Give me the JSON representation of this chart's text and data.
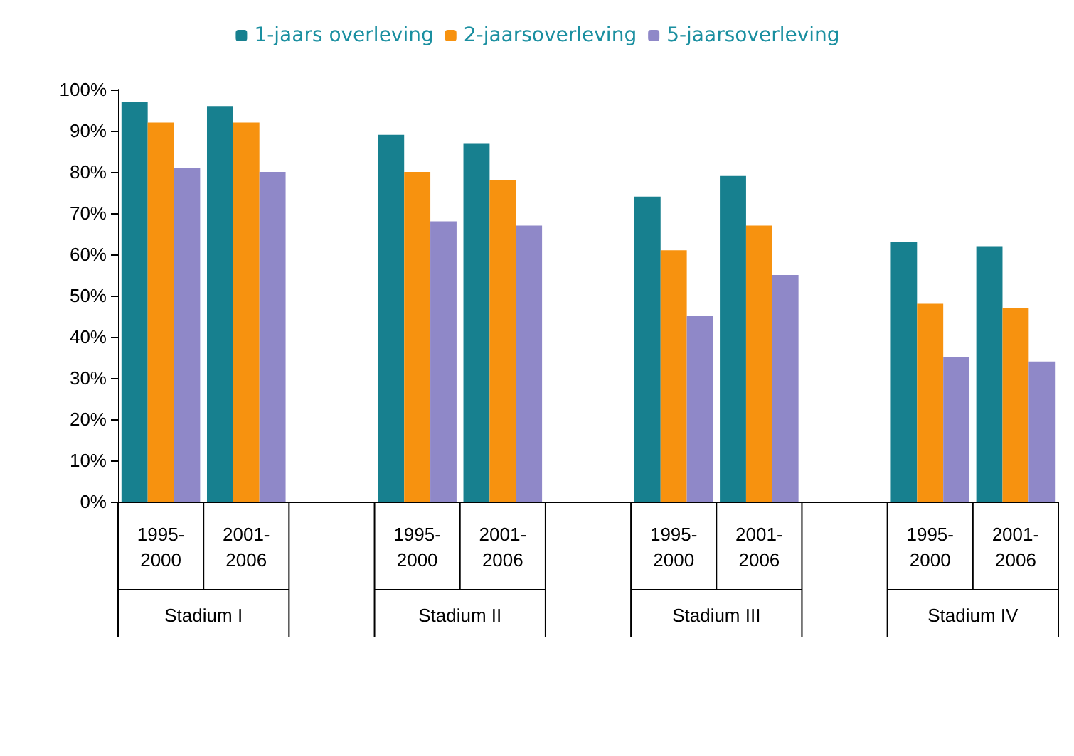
{
  "chart_data": {
    "type": "bar",
    "categories": [
      "1995-2000",
      "2001-2006",
      null,
      "1995-2000",
      "2001-2006",
      null,
      "1995-2000",
      "2001-2006",
      null,
      "1995-2000",
      "2001-2006"
    ],
    "series": [
      {
        "name": "1-jaars overleving",
        "color": "#17808f",
        "values": [
          97,
          96,
          null,
          89,
          87,
          null,
          74,
          79,
          null,
          63,
          62
        ]
      },
      {
        "name": "2-jaarsoverleving",
        "color": "#f7920f",
        "values": [
          92,
          92,
          null,
          80,
          78,
          null,
          61,
          67,
          null,
          48,
          47
        ]
      },
      {
        "name": "5-jaarsoverleving",
        "color": "#8f88c8",
        "values": [
          81,
          80,
          null,
          68,
          67,
          null,
          45,
          55,
          null,
          35,
          34
        ]
      }
    ],
    "annotations": [
      "Stadium I",
      "Stadium II",
      "Stadium III",
      "Stadium IV"
    ],
    "ylim": [
      0,
      100
    ],
    "yticks": [
      {
        "value": 0,
        "label": "0%"
      },
      {
        "value": 10,
        "label": "10%"
      },
      {
        "value": 20,
        "label": "20%"
      },
      {
        "value": 30,
        "label": "30%"
      },
      {
        "value": 40,
        "label": "40%"
      },
      {
        "value": 50,
        "label": "50%"
      },
      {
        "value": 60,
        "label": "60%"
      },
      {
        "value": 70,
        "label": "70%"
      },
      {
        "value": 80,
        "label": "80%"
      },
      {
        "value": 90,
        "label": "90%"
      },
      {
        "value": 100,
        "label": "100%"
      }
    ],
    "grid": false,
    "legend": "top"
  }
}
